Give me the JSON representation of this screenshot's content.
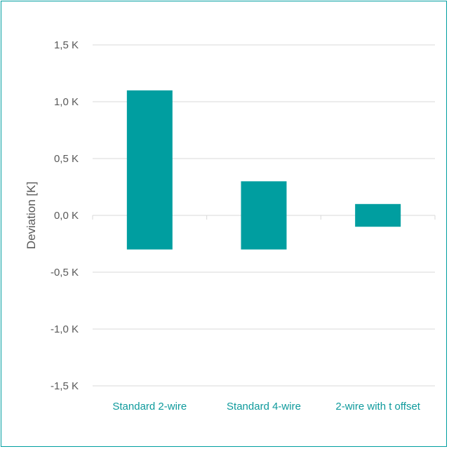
{
  "chart_data": {
    "type": "bar",
    "subtype": "floating-range",
    "title": "",
    "xlabel": "",
    "ylabel": "Deviation [K]",
    "ylim": [
      -1.5,
      1.5
    ],
    "yticks": [
      1.5,
      1.0,
      0.5,
      0.0,
      -0.5,
      -1.0,
      -1.5
    ],
    "ytick_labels": [
      "1,5 K",
      "1,0 K",
      "0,5 K",
      "0,0 K",
      "-0,5 K",
      "-1,0 K",
      "-1,5 K"
    ],
    "categories": [
      "Standard 2-wire",
      "Standard 4-wire",
      "2-wire with t offset"
    ],
    "series": [
      {
        "low": [
          -0.3,
          -0.3,
          -0.1
        ],
        "high": [
          1.1,
          0.3,
          0.1
        ]
      }
    ],
    "bar_color": "#009ea0",
    "grid": true,
    "legend": "none"
  }
}
